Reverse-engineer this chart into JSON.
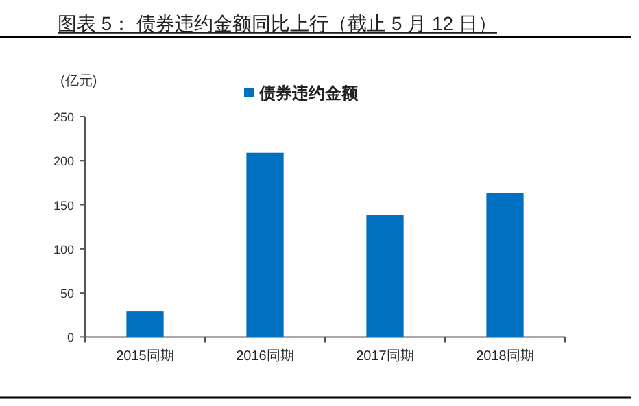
{
  "chart_data": {
    "type": "bar",
    "title": "图表 5：  债券违约金额同比上行（截止 5 月 12 日）",
    "ylabel": "(亿元)",
    "categories": [
      "2015同期",
      "2016同期",
      "2017同期",
      "2018同期"
    ],
    "series": [
      {
        "name": "债券违约金额",
        "color": "#0070c0",
        "values": [
          29,
          209,
          138,
          163
        ]
      }
    ],
    "ylim": [
      0,
      250
    ],
    "yticks": [
      0,
      50,
      100,
      150,
      200,
      250
    ],
    "legend": "top",
    "grid": false
  }
}
